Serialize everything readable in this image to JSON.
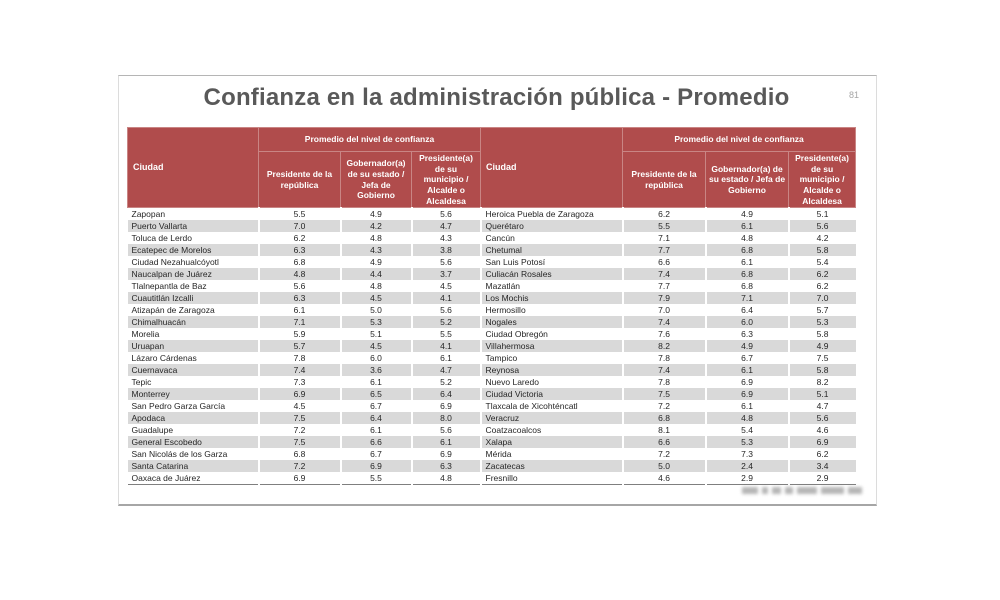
{
  "slide": {
    "title": "Confianza en la administración pública - Promedio",
    "page_number": "81"
  },
  "colors": {
    "header_bg": "#b04c4c",
    "band_row_bg": "#d9d9d9",
    "title_color": "#595959"
  },
  "table": {
    "city_header": "Ciudad",
    "group_header": "Promedio del nivel de confianza",
    "sub_headers": [
      "Presidente de la república",
      "Gobernador(a) de su estado / Jefa de Gobierno",
      "Presidente(a) de su municipio / Alcalde o Alcaldesa"
    ],
    "left_rows": [
      {
        "city": "Zapopan",
        "values": [
          "5.5",
          "4.9",
          "5.6"
        ]
      },
      {
        "city": "Puerto Vallarta",
        "values": [
          "7.0",
          "4.2",
          "4.7"
        ]
      },
      {
        "city": "Toluca de Lerdo",
        "values": [
          "6.2",
          "4.8",
          "4.3"
        ]
      },
      {
        "city": "Ecatepec de Morelos",
        "values": [
          "6.3",
          "4.3",
          "3.8"
        ]
      },
      {
        "city": "Ciudad Nezahualcóyotl",
        "values": [
          "6.8",
          "4.9",
          "5.6"
        ]
      },
      {
        "city": "Naucalpan de Juárez",
        "values": [
          "4.8",
          "4.4",
          "3.7"
        ]
      },
      {
        "city": "Tlalnepantla de Baz",
        "values": [
          "5.6",
          "4.8",
          "4.5"
        ]
      },
      {
        "city": "Cuautitlán Izcalli",
        "values": [
          "6.3",
          "4.5",
          "4.1"
        ]
      },
      {
        "city": "Atizapán de Zaragoza",
        "values": [
          "6.1",
          "5.0",
          "5.6"
        ]
      },
      {
        "city": "Chimalhuacán",
        "values": [
          "7.1",
          "5.3",
          "5.2"
        ]
      },
      {
        "city": "Morelia",
        "values": [
          "5.9",
          "5.1",
          "5.5"
        ]
      },
      {
        "city": "Uruapan",
        "values": [
          "5.7",
          "4.5",
          "4.1"
        ]
      },
      {
        "city": "Lázaro Cárdenas",
        "values": [
          "7.8",
          "6.0",
          "6.1"
        ]
      },
      {
        "city": "Cuernavaca",
        "values": [
          "7.4",
          "3.6",
          "4.7"
        ]
      },
      {
        "city": "Tepic",
        "values": [
          "7.3",
          "6.1",
          "5.2"
        ]
      },
      {
        "city": "Monterrey",
        "values": [
          "6.9",
          "6.5",
          "6.4"
        ]
      },
      {
        "city": "San Pedro Garza García",
        "values": [
          "4.5",
          "6.7",
          "6.9"
        ]
      },
      {
        "city": "Apodaca",
        "values": [
          "7.5",
          "6.4",
          "8.0"
        ]
      },
      {
        "city": "Guadalupe",
        "values": [
          "7.2",
          "6.1",
          "5.6"
        ]
      },
      {
        "city": "General Escobedo",
        "values": [
          "7.5",
          "6.6",
          "6.1"
        ]
      },
      {
        "city": "San Nicolás de los Garza",
        "values": [
          "6.8",
          "6.7",
          "6.9"
        ]
      },
      {
        "city": "Santa Catarina",
        "values": [
          "7.2",
          "6.9",
          "6.3"
        ]
      },
      {
        "city": "Oaxaca de Juárez",
        "values": [
          "6.9",
          "5.5",
          "4.8"
        ]
      }
    ],
    "right_rows": [
      {
        "city": "Heroica Puebla de Zaragoza",
        "values": [
          "6.2",
          "4.9",
          "5.1"
        ]
      },
      {
        "city": "Querétaro",
        "values": [
          "5.5",
          "6.1",
          "5.6"
        ]
      },
      {
        "city": "Cancún",
        "values": [
          "7.1",
          "4.8",
          "4.2"
        ]
      },
      {
        "city": "Chetumal",
        "values": [
          "7.7",
          "6.8",
          "5.8"
        ]
      },
      {
        "city": "San Luis Potosí",
        "values": [
          "6.6",
          "6.1",
          "5.4"
        ]
      },
      {
        "city": "Culiacán Rosales",
        "values": [
          "7.4",
          "6.8",
          "6.2"
        ]
      },
      {
        "city": "Mazatlán",
        "values": [
          "7.7",
          "6.8",
          "6.2"
        ]
      },
      {
        "city": "Los Mochis",
        "values": [
          "7.9",
          "7.1",
          "7.0"
        ]
      },
      {
        "city": "Hermosillo",
        "values": [
          "7.0",
          "6.4",
          "5.7"
        ]
      },
      {
        "city": "Nogales",
        "values": [
          "7.4",
          "6.0",
          "5.3"
        ]
      },
      {
        "city": "Ciudad Obregón",
        "values": [
          "7.6",
          "6.3",
          "5.8"
        ]
      },
      {
        "city": "Villahermosa",
        "values": [
          "8.2",
          "4.9",
          "4.9"
        ]
      },
      {
        "city": "Tampico",
        "values": [
          "7.8",
          "6.7",
          "7.5"
        ]
      },
      {
        "city": "Reynosa",
        "values": [
          "7.4",
          "6.1",
          "5.8"
        ]
      },
      {
        "city": "Nuevo Laredo",
        "values": [
          "7.8",
          "6.9",
          "8.2"
        ]
      },
      {
        "city": "Ciudad Victoria",
        "values": [
          "7.5",
          "6.9",
          "5.1"
        ]
      },
      {
        "city": "Tlaxcala de Xicohténcatl",
        "values": [
          "7.2",
          "6.1",
          "4.7"
        ]
      },
      {
        "city": "Veracruz",
        "values": [
          "6.8",
          "4.8",
          "5.6"
        ]
      },
      {
        "city": "Coatzacoalcos",
        "values": [
          "8.1",
          "5.4",
          "4.6"
        ]
      },
      {
        "city": "Xalapa",
        "values": [
          "6.6",
          "5.3",
          "6.9"
        ]
      },
      {
        "city": "Mérida",
        "values": [
          "7.2",
          "7.3",
          "6.2"
        ]
      },
      {
        "city": "Zacatecas",
        "values": [
          "5.0",
          "2.4",
          "3.4"
        ]
      },
      {
        "city": "Fresnillo",
        "values": [
          "4.6",
          "2.9",
          "2.9"
        ]
      }
    ]
  }
}
